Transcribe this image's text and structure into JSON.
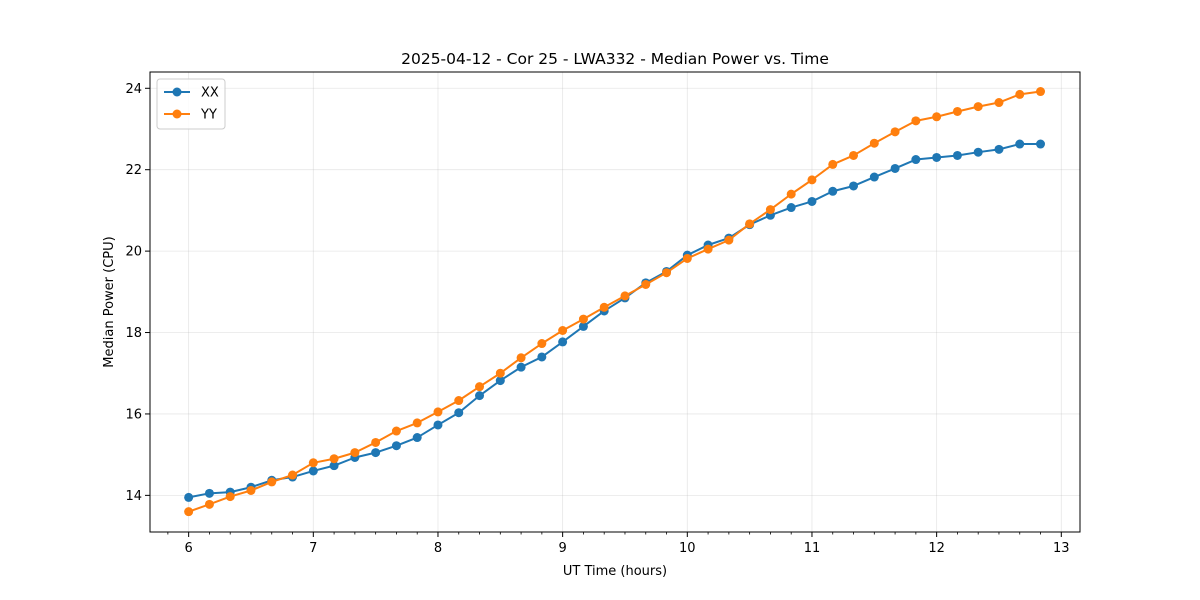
{
  "chart_data": {
    "type": "line",
    "title": "2025-04-12 - Cor 25 - LWA332 - Median Power vs. Time",
    "xlabel": "UT Time (hours)",
    "ylabel": "Median Power (CPU)",
    "xlim": [
      5.69,
      13.15
    ],
    "ylim": [
      13.1,
      24.4
    ],
    "xticks": [
      6,
      7,
      8,
      9,
      10,
      11,
      12,
      13
    ],
    "yticks": [
      14,
      16,
      18,
      20,
      22,
      24
    ],
    "grid": true,
    "legend_position": "top-left",
    "x": [
      6.0,
      6.1667,
      6.3333,
      6.5,
      6.6667,
      6.8333,
      7.0,
      7.1667,
      7.3333,
      7.5,
      7.6667,
      7.8333,
      8.0,
      8.1667,
      8.3333,
      8.5,
      8.6667,
      8.8333,
      9.0,
      9.1667,
      9.3333,
      9.5,
      9.6667,
      9.8333,
      10.0,
      10.1667,
      10.3333,
      10.5,
      10.6667,
      10.8333,
      11.0,
      11.1667,
      11.3333,
      11.5,
      11.6667,
      11.8333,
      12.0,
      12.1667,
      12.3333,
      12.5,
      12.6667,
      12.8333
    ],
    "series": [
      {
        "name": "XX",
        "color": "#1f77b4",
        "values": [
          13.95,
          14.05,
          14.08,
          14.2,
          14.37,
          14.45,
          14.6,
          14.73,
          14.93,
          15.05,
          15.22,
          15.42,
          15.73,
          16.03,
          16.45,
          16.82,
          17.15,
          17.4,
          17.77,
          18.15,
          18.53,
          18.85,
          19.22,
          19.5,
          19.9,
          20.15,
          20.32,
          20.65,
          20.88,
          21.07,
          21.22,
          21.47,
          21.6,
          21.82,
          22.03,
          22.25,
          22.3,
          22.35,
          22.43,
          22.5,
          22.63,
          22.63
        ]
      },
      {
        "name": "YY",
        "color": "#ff7f0e",
        "values": [
          13.6,
          13.78,
          13.97,
          14.12,
          14.33,
          14.5,
          14.8,
          14.9,
          15.05,
          15.3,
          15.58,
          15.78,
          16.05,
          16.33,
          16.67,
          17.0,
          17.38,
          17.73,
          18.05,
          18.33,
          18.62,
          18.9,
          19.18,
          19.47,
          19.82,
          20.05,
          20.27,
          20.67,
          21.02,
          21.4,
          21.75,
          22.13,
          22.35,
          22.65,
          22.93,
          23.2,
          23.3,
          23.43,
          23.55,
          23.65,
          23.85,
          23.92
        ]
      }
    ]
  }
}
